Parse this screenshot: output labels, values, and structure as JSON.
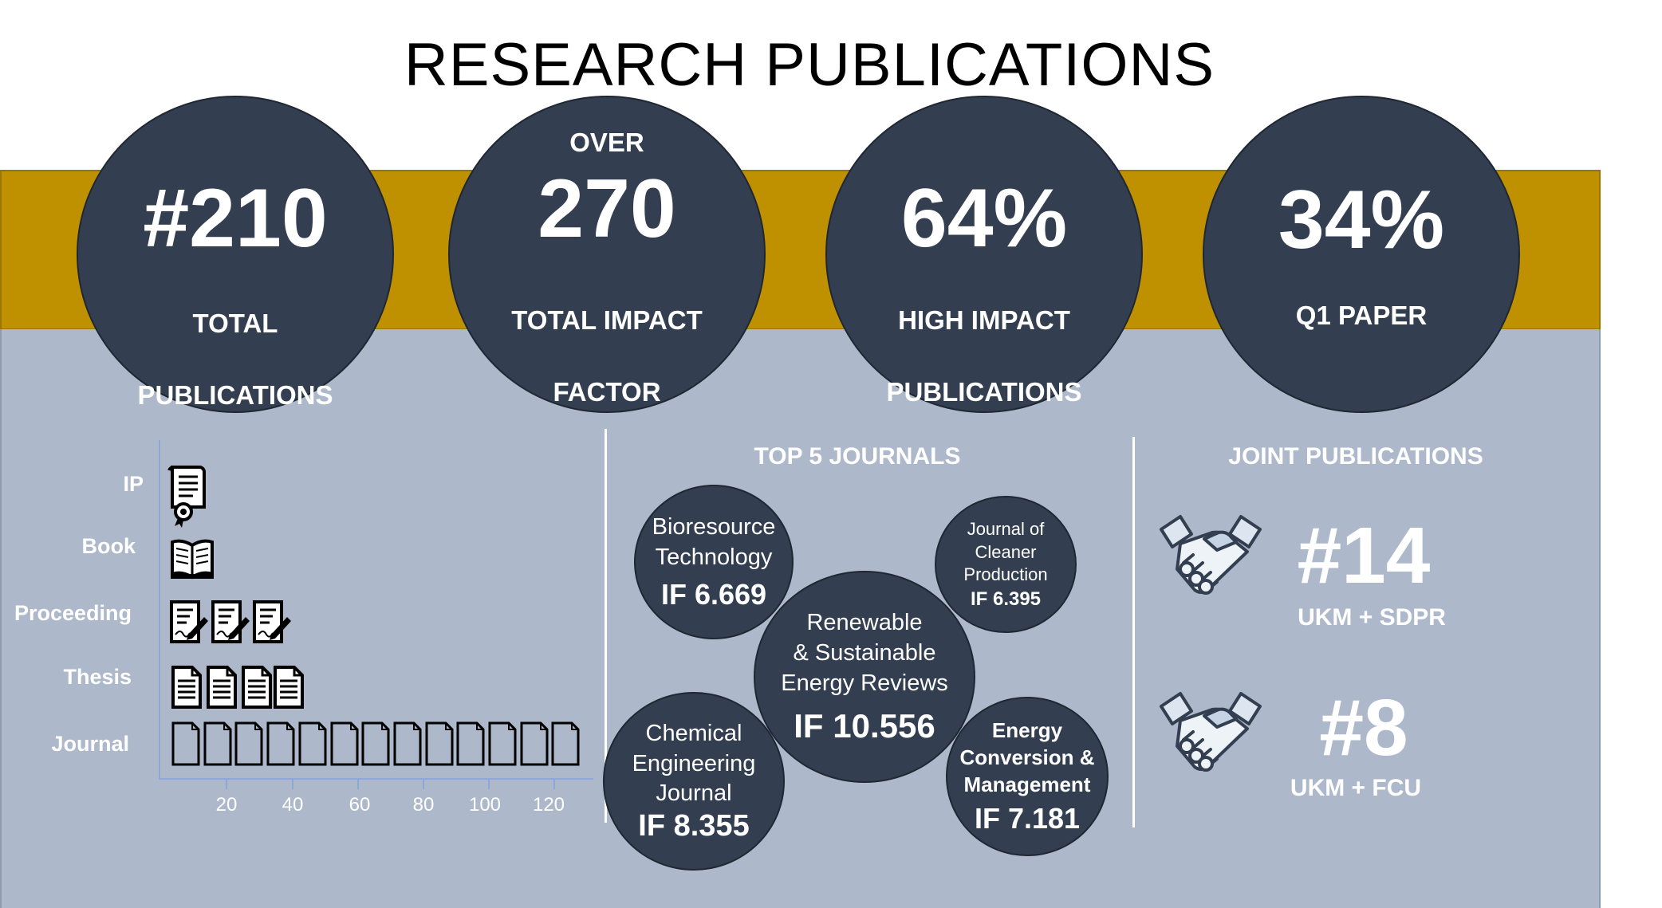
{
  "title": "RESEARCH PUBLICATIONS",
  "stats": [
    {
      "pre": "",
      "value": "#210",
      "label_lines": [
        "TOTAL",
        "PUBLICATIONS"
      ]
    },
    {
      "pre": "OVER",
      "value": "270",
      "label_lines": [
        "TOTAL IMPACT",
        "FACTOR"
      ]
    },
    {
      "pre": "",
      "value": "64%",
      "label_lines": [
        "HIGH IMPACT",
        "PUBLICATIONS"
      ]
    },
    {
      "pre": "",
      "value": "34%",
      "label_lines": [
        "Q1 PAPER"
      ]
    }
  ],
  "chart_data": {
    "type": "bar",
    "orientation": "horizontal",
    "categories": [
      "IP",
      "Book",
      "Proceeding",
      "Thesis",
      "Journal"
    ],
    "icons": [
      "certificate-icon",
      "book-icon",
      "document-signature-icon",
      "document-text-icon",
      "document-blank-icon"
    ],
    "x_ticks": [
      "20",
      "40",
      "60",
      "80",
      "100",
      "120"
    ],
    "xlim": [
      0,
      130
    ],
    "grid": false
  },
  "journals_section": {
    "title": "TOP 5 JOURNALS",
    "journals": [
      {
        "name_lines": [
          "Bioresource",
          "Technology"
        ],
        "if": "IF 6.669"
      },
      {
        "name_lines": [
          "Journal of",
          "Cleaner",
          "Production"
        ],
        "if": "IF 6.395"
      },
      {
        "name_lines": [
          "Renewable",
          "& Sustainable",
          "Energy Reviews"
        ],
        "if": "IF 10.556"
      },
      {
        "name_lines": [
          "Chemical",
          "Engineering",
          "Journal"
        ],
        "if": "IF 8.355"
      },
      {
        "name_lines": [
          "Energy",
          "Conversion &",
          "Management"
        ],
        "if": "IF 7.181"
      }
    ]
  },
  "joint_section": {
    "title": "JOINT PUBLICATIONS",
    "items": [
      {
        "value": "#14",
        "label": "UKM + SDPR",
        "icon": "handshake-icon"
      },
      {
        "value": "#8",
        "label": "UKM + FCU",
        "icon": "handshake-icon"
      }
    ]
  },
  "colors": {
    "gold": "#bf9000",
    "panel": "#adb9ca",
    "circle": "#333f50"
  }
}
